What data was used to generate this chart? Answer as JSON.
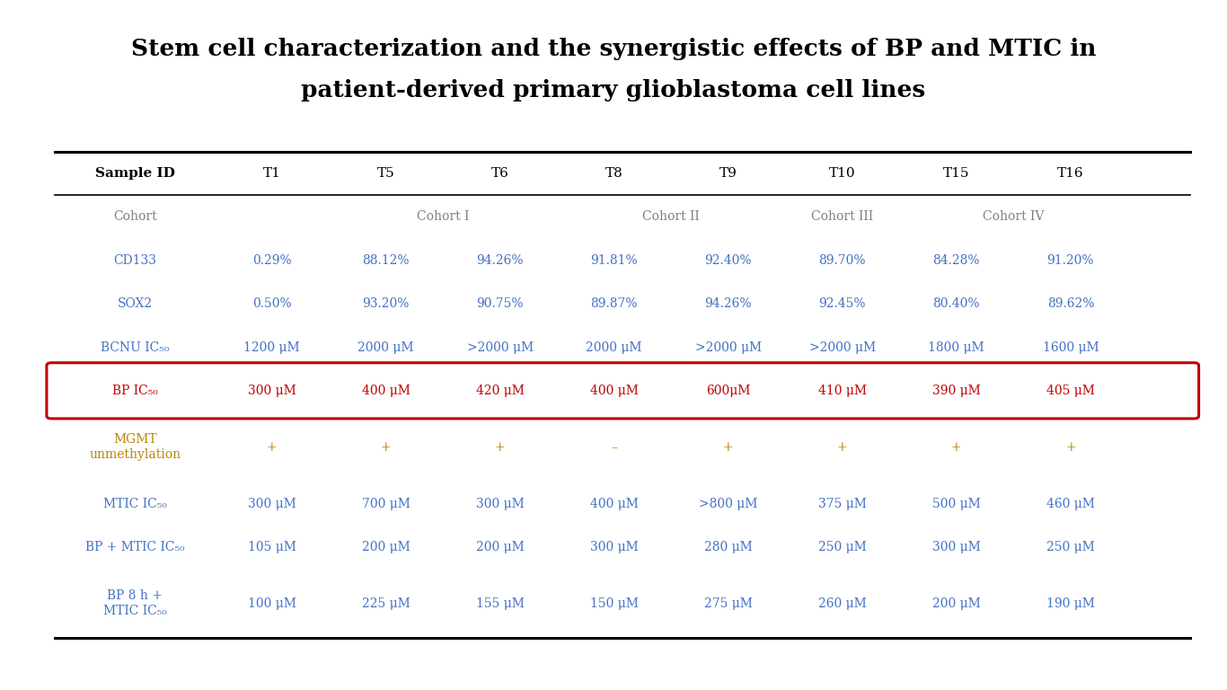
{
  "title_line1": "Stem cell characterization and the synergistic effects of BP and MTIC in",
  "title_line2": "patient-derived primary glioblastoma cell lines",
  "bg_color": "#ffffff",
  "col_headers": [
    "Sample ID",
    "T1",
    "T5",
    "T6",
    "T8",
    "T9",
    "T10",
    "T15",
    "T16"
  ],
  "rows": [
    {
      "label": "Cohort",
      "values": [
        "",
        "",
        "",
        "",
        "",
        "",
        "",
        ""
      ],
      "color": "#7f7f7f",
      "highlight": false,
      "multiline": false,
      "is_cohort": true
    },
    {
      "label": "CD133",
      "values": [
        "0.29%",
        "88.12%",
        "94.26%",
        "91.81%",
        "92.40%",
        "89.70%",
        "84.28%",
        "91.20%"
      ],
      "color": "#4472c4",
      "highlight": false,
      "multiline": false,
      "is_cohort": false
    },
    {
      "label": "SOX2",
      "values": [
        "0.50%",
        "93.20%",
        "90.75%",
        "89.87%",
        "94.26%",
        "92.45%",
        "80.40%",
        "89.62%"
      ],
      "color": "#4472c4",
      "highlight": false,
      "multiline": false,
      "is_cohort": false
    },
    {
      "label": "BCNU IC₅₀",
      "values": [
        "1200 μM",
        "2000 μM",
        ">2000 μM",
        "2000 μM",
        ">2000 μM",
        ">2000 μM",
        "1800 μM",
        "1600 μM"
      ],
      "color": "#4472c4",
      "highlight": false,
      "multiline": false,
      "is_cohort": false
    },
    {
      "label": "BP IC₅₀",
      "values": [
        "300 μM",
        "400 μM",
        "420 μM",
        "400 μM",
        "600μM",
        "410 μM",
        "390 μM",
        "405 μM"
      ],
      "color": "#c00000",
      "highlight": true,
      "multiline": false,
      "is_cohort": false
    },
    {
      "label": "MGMT\nunmethylation",
      "values": [
        "+",
        "+",
        "+",
        "–",
        "+",
        "+",
        "+",
        "+"
      ],
      "color": "#b8860b",
      "highlight": false,
      "multiline": true,
      "is_cohort": false
    },
    {
      "label": "MTIC IC₅₀",
      "values": [
        "300 μM",
        "700 μM",
        "300 μM",
        "400 μM",
        ">800 μM",
        "375 μM",
        "500 μM",
        "460 μM"
      ],
      "color": "#4472c4",
      "highlight": false,
      "multiline": false,
      "is_cohort": false
    },
    {
      "label": "BP + MTIC IC₅₀",
      "values": [
        "105 μM",
        "200 μM",
        "200 μM",
        "300 μM",
        "280 μM",
        "250 μM",
        "300 μM",
        "250 μM"
      ],
      "color": "#4472c4",
      "highlight": false,
      "multiline": false,
      "is_cohort": false
    },
    {
      "label": "BP 8 h +\nMTIC IC₅₀",
      "values": [
        "100 μM",
        "225 μM",
        "155 μM",
        "150 μM",
        "275 μM",
        "260 μM",
        "200 μM",
        "190 μM"
      ],
      "color": "#4472c4",
      "highlight": false,
      "multiline": true,
      "is_cohort": false
    }
  ],
  "cohort_spans": [
    {
      "cols": [
        2,
        3
      ],
      "text": "Cohort I"
    },
    {
      "cols": [
        4,
        5
      ],
      "text": "Cohort II"
    },
    {
      "cols": [
        6
      ],
      "text": "Cohort III"
    },
    {
      "cols": [
        7,
        8
      ],
      "text": "Cohort IV"
    }
  ],
  "highlight_color": "#c00000",
  "header_color": "#000000",
  "cohort_text_color": "#808080"
}
